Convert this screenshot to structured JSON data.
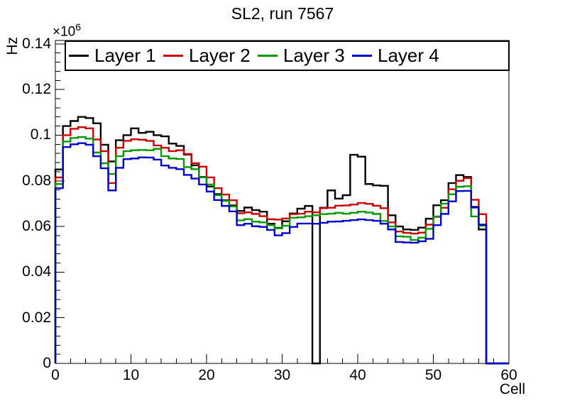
{
  "header": {
    "title": "SL2, run 7567"
  },
  "legend": {
    "entries": [
      {
        "label": "Layer 1",
        "color": "#000000"
      },
      {
        "label": "Layer 2",
        "color": "#cc0000"
      },
      {
        "label": "Layer 3",
        "color": "#009900"
      },
      {
        "label": "Layer 4",
        "color": "#0000cc"
      }
    ]
  },
  "axes": {
    "y_title": "Hz",
    "y_exponent_base": "×10",
    "y_exponent_power": "6",
    "x_title": "Cell",
    "y_tick_labels": [
      "0",
      "0.02",
      "0.04",
      "0.06",
      "0.08",
      "0.1",
      "0.12",
      "0.14"
    ],
    "x_tick_labels": [
      "0",
      "10",
      "20",
      "30",
      "40",
      "50",
      "60"
    ]
  },
  "chart_data": {
    "type": "step-histogram",
    "title": "SL2, run 7567",
    "xlabel": "Cell",
    "ylabel": "Hz",
    "y_unit": "x10^6 Hz",
    "xlim": [
      0,
      60
    ],
    "ylim": [
      0,
      0.1415
    ],
    "bin_width": 1,
    "grid": false,
    "legend_position": "top horizontal, 4 columns",
    "x_major_ticks": [
      0,
      10,
      20,
      30,
      40,
      50,
      60
    ],
    "x_minor_step": 2,
    "y_major_ticks": [
      0,
      0.02,
      0.04,
      0.06,
      0.08,
      0.1,
      0.12,
      0.14
    ],
    "y_minor_step": 0.004,
    "cells": [
      0,
      1,
      2,
      3,
      4,
      5,
      6,
      7,
      8,
      9,
      10,
      11,
      12,
      13,
      14,
      15,
      16,
      17,
      18,
      19,
      20,
      21,
      22,
      23,
      24,
      25,
      26,
      27,
      28,
      29,
      30,
      31,
      32,
      33,
      34,
      35,
      36,
      37,
      38,
      39,
      40,
      41,
      42,
      43,
      44,
      45,
      46,
      47,
      48,
      49,
      50,
      51,
      52,
      53,
      54,
      55,
      56,
      57,
      58,
      59
    ],
    "series": [
      {
        "name": "Layer 1",
        "color": "#000000",
        "values": [
          0.085,
          0.104,
          0.1062,
          0.108,
          0.1075,
          0.1052,
          0.0958,
          0.0885,
          0.0978,
          0.1,
          0.103,
          0.101,
          0.1015,
          0.1,
          0.0995,
          0.0963,
          0.0953,
          0.0915,
          0.0868,
          0.0817,
          0.0775,
          0.0742,
          0.0715,
          0.0692,
          0.0668,
          0.0683,
          0.0672,
          0.0665,
          0.0612,
          0.0594,
          0.0623,
          0.0657,
          0.0678,
          0.069,
          0.0,
          0.0682,
          0.0758,
          0.0722,
          0.0737,
          0.0914,
          0.0906,
          0.0786,
          0.078,
          0.0778,
          0.0649,
          0.06,
          0.0587,
          0.0585,
          0.0595,
          0.0634,
          0.0693,
          0.0715,
          0.079,
          0.0825,
          0.0817,
          0.0686,
          0.0587,
          0,
          0,
          0
        ]
      },
      {
        "name": "Layer 2",
        "color": "#cc0000",
        "values": [
          0.0815,
          0.1,
          0.1028,
          0.1035,
          0.103,
          0.0981,
          0.093,
          0.079,
          0.0945,
          0.0975,
          0.0982,
          0.098,
          0.0975,
          0.0955,
          0.0945,
          0.093,
          0.0934,
          0.0918,
          0.0877,
          0.0862,
          0.0815,
          0.0768,
          0.074,
          0.0715,
          0.0658,
          0.0662,
          0.0655,
          0.0645,
          0.0632,
          0.063,
          0.0635,
          0.0654,
          0.0656,
          0.0665,
          0.0662,
          0.068,
          0.0682,
          0.0691,
          0.0692,
          0.0696,
          0.0703,
          0.0699,
          0.0691,
          0.068,
          0.0618,
          0.0578,
          0.0572,
          0.0569,
          0.0573,
          0.0608,
          0.0642,
          0.0682,
          0.0763,
          0.08,
          0.0812,
          0.0717,
          0.0654,
          0,
          0,
          0
        ]
      },
      {
        "name": "Layer 3",
        "color": "#009900",
        "values": [
          0.0786,
          0.0972,
          0.0988,
          0.0992,
          0.0985,
          0.0924,
          0.0877,
          0.083,
          0.0908,
          0.093,
          0.0934,
          0.0935,
          0.0934,
          0.094,
          0.0908,
          0.0898,
          0.0896,
          0.086,
          0.0851,
          0.0815,
          0.0784,
          0.0737,
          0.0712,
          0.0688,
          0.0627,
          0.0632,
          0.0621,
          0.0618,
          0.0606,
          0.0592,
          0.0603,
          0.0638,
          0.064,
          0.0645,
          0.0649,
          0.0654,
          0.0656,
          0.066,
          0.0656,
          0.066,
          0.0665,
          0.0661,
          0.0655,
          0.0624,
          0.06,
          0.0557,
          0.0555,
          0.0541,
          0.0551,
          0.059,
          0.0644,
          0.07,
          0.0741,
          0.0774,
          0.0776,
          0.0644,
          0.0603,
          0,
          0,
          0
        ]
      },
      {
        "name": "Layer 4",
        "color": "#0000cc",
        "values": [
          0.0768,
          0.0948,
          0.096,
          0.0965,
          0.0958,
          0.0908,
          0.0855,
          0.0758,
          0.0857,
          0.0895,
          0.0898,
          0.0903,
          0.0902,
          0.0893,
          0.0867,
          0.0857,
          0.0851,
          0.0826,
          0.081,
          0.0784,
          0.0753,
          0.0716,
          0.069,
          0.0666,
          0.0606,
          0.0612,
          0.0601,
          0.0598,
          0.0585,
          0.0561,
          0.0571,
          0.0598,
          0.0613,
          0.0613,
          0.0612,
          0.0616,
          0.0621,
          0.0622,
          0.0625,
          0.0628,
          0.0631,
          0.0628,
          0.0625,
          0.0612,
          0.0587,
          0.0532,
          0.053,
          0.0529,
          0.0535,
          0.0546,
          0.0606,
          0.0655,
          0.071,
          0.0755,
          0.0756,
          0.0683,
          0.0608,
          0,
          0,
          0
        ]
      }
    ]
  }
}
